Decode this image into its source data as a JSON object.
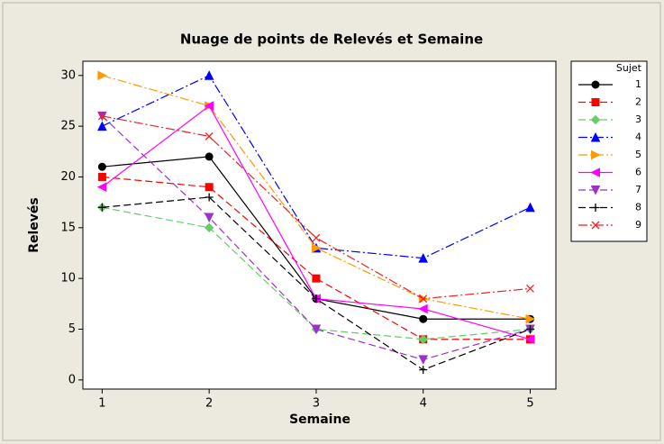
{
  "chart_data": {
    "type": "line",
    "title": "Nuage de points de Relevés et Semaine",
    "xlabel": "Semaine",
    "ylabel": "Relevés",
    "x": [
      1,
      2,
      3,
      4,
      5
    ],
    "xlim": [
      0.82,
      5.24
    ],
    "xticks": [
      1,
      2,
      3,
      4,
      5
    ],
    "ylim": [
      -0.9,
      31.4
    ],
    "yticks": [
      0,
      5,
      10,
      15,
      20,
      25,
      30
    ],
    "legend_title": "Sujet",
    "legend": "right",
    "series": [
      {
        "name": "1",
        "color": "#000000",
        "marker": "circle",
        "dash": "solid",
        "values": [
          21,
          22,
          8,
          6,
          6
        ]
      },
      {
        "name": "2",
        "color": "#ff0000",
        "marker": "square",
        "dash": "dashed",
        "values": [
          20,
          19,
          10,
          4,
          4
        ]
      },
      {
        "name": "3",
        "color": "#66cc66",
        "marker": "diamond",
        "dash": "dashed",
        "values": [
          17,
          15,
          5,
          4,
          5
        ]
      },
      {
        "name": "4",
        "color": "#0000ff",
        "marker": "triangle-up",
        "dash": "dashdot",
        "values": [
          25,
          30,
          13,
          12,
          17
        ]
      },
      {
        "name": "5",
        "color": "#ff9900",
        "marker": "triangle-right",
        "dash": "dashdot",
        "values": [
          30,
          27,
          13,
          8,
          6
        ]
      },
      {
        "name": "6",
        "color": "#ff00ff",
        "marker": "triangle-left",
        "dash": "solid",
        "values": [
          19,
          27,
          8,
          7,
          4
        ]
      },
      {
        "name": "7",
        "color": "#9933cc",
        "marker": "triangle-down",
        "dash": "dashed",
        "values": [
          26,
          16,
          5,
          2,
          5
        ]
      },
      {
        "name": "8",
        "color": "#000000",
        "marker": "plus",
        "dash": "dashed",
        "values": [
          17,
          18,
          8,
          1,
          5
        ]
      },
      {
        "name": "9",
        "color": "#ee2222",
        "marker": "x",
        "dash": "dashdot",
        "values": [
          26,
          24,
          14,
          8,
          9
        ]
      }
    ]
  }
}
